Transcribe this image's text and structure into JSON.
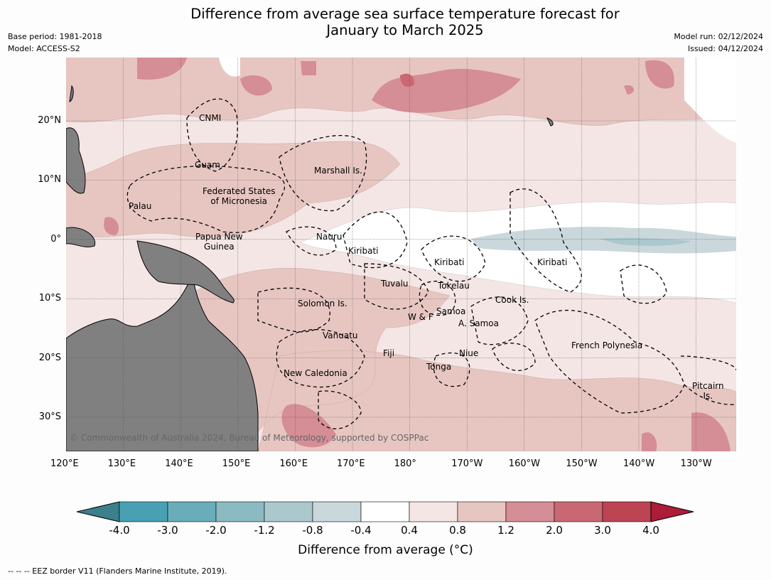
{
  "title_line1": "Difference from average sea surface temperature forecast for",
  "title_line2": "January to March 2025",
  "base_period": "Base period: 1981-2018",
  "model": "Model: ACCESS-S2",
  "model_run": "Model run: 02/12/2024",
  "issued": "Issued: 04/12/2024",
  "lon_ticks": [
    "120°E",
    "130°E",
    "140°E",
    "150°E",
    "160°E",
    "170°E",
    "180°",
    "170°W",
    "160°W",
    "150°W",
    "140°W",
    "130°W"
  ],
  "lat_ticks": [
    "20°N",
    "10°N",
    "0°",
    "10°S",
    "20°S",
    "30°S"
  ],
  "regions": {
    "cnmi": "CNMI",
    "guam": "Guam",
    "marshall": "Marshall Is.",
    "fsm1": "Federated States",
    "fsm2": "of Micronesia",
    "palau": "Palau",
    "png1": "Papua New",
    "png2": "Guinea",
    "nauru": "Nauru",
    "kiribati_w": "Kiribati",
    "kiribati_c": "Kiribati",
    "kiribati_e": "Kiribati",
    "tuvalu": "Tuvalu",
    "tokelau": "Tokelau",
    "cook": "Cook Is.",
    "solomon": "Solomon Is.",
    "wf": "W & F",
    "samoa": "Samoa",
    "asamoa": "A. Samoa",
    "vanuatu": "Vanuatu",
    "fiji": "Fiji",
    "niue": "Niue",
    "tonga": "Tonga",
    "newcal": "New Caledonia",
    "frpoly": "French Polynesia",
    "pitcairn1": "Pitcairn",
    "pitcairn2": "Is."
  },
  "copyright": "© Commonwealth of Australia 2024, Bureau of Meteorology, supported by COSPPac",
  "colorbar": {
    "title": "Difference from average (°C)",
    "labels": [
      "-4.0",
      "-3.0",
      "-2.0",
      "-1.2",
      "-0.8",
      "-0.4",
      "0.4",
      "0.8",
      "1.2",
      "2.0",
      "3.0",
      "4.0"
    ],
    "colors": [
      "#47a1b2",
      "#69adba",
      "#8cbac2",
      "#abc8cd",
      "#cad8dc",
      "#ffffff",
      "#f4e6e4",
      "#e7c6c1",
      "#d58d96",
      "#c96873",
      "#bd4553"
    ],
    "under_color": "#3b808b",
    "over_color": "#ad1c38"
  },
  "footer": "--  --  -- EEZ border V11 (Flanders Marine Institute, 2019)."
}
